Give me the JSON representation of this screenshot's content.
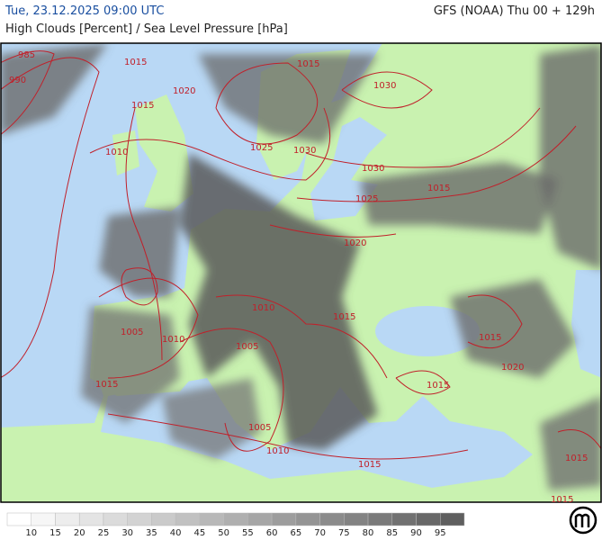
{
  "header": {
    "left": "Tue, 23.12.2025 09:00 UTC",
    "right": "GFS (NOAA) Thu 00 + 129h",
    "subtitle": "High Clouds [Percent] / Sea Level Pressure [hPa]"
  },
  "isobar_labels": [
    "985",
    "990",
    "1015",
    "1015",
    "1020",
    "1015",
    "1030",
    "1010",
    "1025",
    "1030",
    "1030",
    "1025",
    "1020",
    "1010",
    "1015",
    "1005",
    "1010",
    "1005",
    "1015",
    "1015",
    "1015",
    "1020",
    "1015",
    "1005",
    "1010",
    "1015",
    "1015",
    "1015"
  ],
  "legend": {
    "ticks": [
      10,
      15,
      20,
      25,
      30,
      35,
      40,
      45,
      50,
      55,
      60,
      65,
      70,
      75,
      80,
      85,
      90,
      95
    ]
  }
}
